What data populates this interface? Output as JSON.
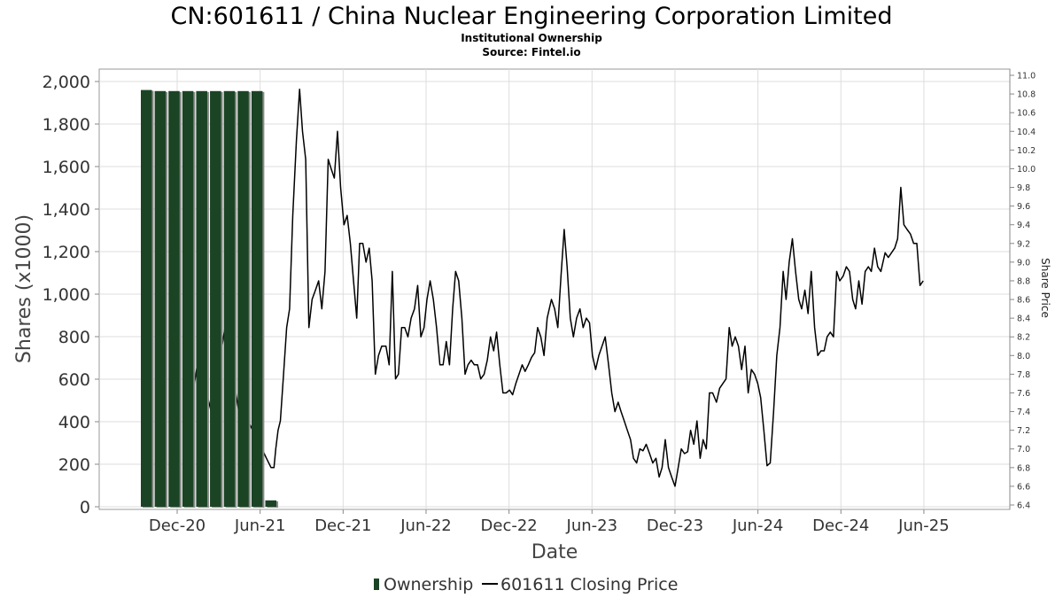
{
  "header": {
    "title": "CN:601611 / China Nuclear Engineering Corporation Limited",
    "subtitle": "Institutional Ownership",
    "source": "Source: Fintel.io"
  },
  "axes": {
    "xlabel": "Date",
    "ylabel_left": "Shares (x1000)",
    "ylabel_right": "Share Price"
  },
  "legend": {
    "ownership_label": "Ownership",
    "price_label": "601611 Closing Price"
  },
  "colors": {
    "bar_fill": "#1b4424",
    "bar_shadow": "#8a8a8a",
    "line": "#000000",
    "grid": "#dddddd"
  },
  "chart_data": {
    "type": "bar+line",
    "x_tick_labels": [
      "Dec-20",
      "Jun-21",
      "Dec-21",
      "Jun-22",
      "Dec-22",
      "Jun-23",
      "Dec-23",
      "Jun-24",
      "Dec-24",
      "Jun-25"
    ],
    "y_left": {
      "ticks": [
        0,
        200,
        400,
        600,
        800,
        1000,
        1200,
        1400,
        1600,
        1800,
        2000
      ],
      "tick_labels": [
        "0",
        "200",
        "400",
        "600",
        "800",
        "1,000",
        "1,200",
        "1,400",
        "1,600",
        "1,800",
        "2,000"
      ],
      "range": [
        0,
        2000
      ]
    },
    "y_right": {
      "ticks": [
        6.4,
        6.6,
        6.8,
        7.0,
        7.2,
        7.4,
        7.6,
        7.8,
        8.0,
        8.2,
        8.4,
        8.6,
        8.8,
        9.0,
        9.2,
        9.4,
        9.6,
        9.8,
        10.0,
        10.2,
        10.4,
        10.6,
        10.8,
        11.0
      ],
      "tick_labels": [
        "6.4",
        "6.6",
        "6.8",
        "7.0",
        "7.2",
        "7.4",
        "7.6",
        "7.8",
        "8.0",
        "8.2",
        "8.4",
        "8.6",
        "8.8",
        "9.0",
        "9.2",
        "9.4",
        "9.6",
        "9.8",
        "10.0",
        "10.2",
        "10.4",
        "10.6",
        "10.8",
        "11.0"
      ],
      "range": [
        6.4,
        11.0
      ]
    },
    "ownership_series": {
      "name": "Ownership",
      "dates": [
        "2020-10-01",
        "2020-11-01",
        "2020-12-01",
        "2021-01-01",
        "2021-02-01",
        "2021-03-01",
        "2021-04-01",
        "2021-05-01",
        "2021-06-01",
        "2021-07-01"
      ],
      "values": [
        1960,
        1955,
        1955,
        1955,
        1955,
        1955,
        1955,
        1955,
        1955,
        30
      ]
    },
    "price_series": {
      "name": "601611 Closing Price",
      "points": [
        [
          "2020-12-15",
          7.4
        ],
        [
          "2020-12-25",
          7.3
        ],
        [
          "2021-01-05",
          7.6
        ],
        [
          "2021-01-15",
          7.9
        ],
        [
          "2021-01-25",
          8.0
        ],
        [
          "2021-02-05",
          7.6
        ],
        [
          "2021-02-15",
          7.4
        ],
        [
          "2021-02-25",
          7.5
        ],
        [
          "2021-03-05",
          8.0
        ],
        [
          "2021-03-15",
          8.3
        ],
        [
          "2021-03-25",
          8.0
        ],
        [
          "2021-04-05",
          7.7
        ],
        [
          "2021-04-15",
          7.4
        ],
        [
          "2021-04-25",
          7.2
        ],
        [
          "2021-05-05",
          7.3
        ],
        [
          "2021-05-15",
          7.2
        ],
        [
          "2021-05-25",
          7.1
        ],
        [
          "2021-06-05",
          7.0
        ],
        [
          "2021-06-15",
          6.9
        ],
        [
          "2021-06-25",
          6.8
        ],
        [
          "2021-07-01",
          6.8
        ],
        [
          "2021-07-05",
          7.0
        ],
        [
          "2021-07-10",
          7.2
        ],
        [
          "2021-07-15",
          7.3
        ],
        [
          "2021-07-22",
          7.8
        ],
        [
          "2021-07-29",
          8.3
        ],
        [
          "2021-08-05",
          8.5
        ],
        [
          "2021-08-12",
          9.5
        ],
        [
          "2021-08-20",
          10.3
        ],
        [
          "2021-08-27",
          10.85
        ],
        [
          "2021-09-03",
          10.4
        ],
        [
          "2021-09-10",
          10.1
        ],
        [
          "2021-09-17",
          8.3
        ],
        [
          "2021-09-24",
          8.6
        ],
        [
          "2021-10-01",
          8.7
        ],
        [
          "2021-10-08",
          8.8
        ],
        [
          "2021-10-15",
          8.5
        ],
        [
          "2021-10-22",
          8.9
        ],
        [
          "2021-10-29",
          10.1
        ],
        [
          "2021-11-05",
          10.0
        ],
        [
          "2021-11-12",
          9.9
        ],
        [
          "2021-11-19",
          10.4
        ],
        [
          "2021-11-26",
          9.8
        ],
        [
          "2021-12-03",
          9.4
        ],
        [
          "2021-12-10",
          9.5
        ],
        [
          "2021-12-17",
          9.2
        ],
        [
          "2021-12-24",
          8.8
        ],
        [
          "2021-12-31",
          8.4
        ],
        [
          "2022-01-07",
          9.2
        ],
        [
          "2022-01-14",
          9.2
        ],
        [
          "2022-01-21",
          9.0
        ],
        [
          "2022-01-28",
          9.15
        ],
        [
          "2022-02-04",
          8.8
        ],
        [
          "2022-02-11",
          7.8
        ],
        [
          "2022-02-18",
          8.0
        ],
        [
          "2022-02-25",
          8.1
        ],
        [
          "2022-03-04",
          8.1
        ],
        [
          "2022-03-11",
          7.9
        ],
        [
          "2022-03-18",
          8.9
        ],
        [
          "2022-03-25",
          7.75
        ],
        [
          "2022-04-01",
          7.8
        ],
        [
          "2022-04-08",
          8.3
        ],
        [
          "2022-04-15",
          8.3
        ],
        [
          "2022-04-22",
          8.2
        ],
        [
          "2022-04-29",
          8.4
        ],
        [
          "2022-05-06",
          8.5
        ],
        [
          "2022-05-13",
          8.75
        ],
        [
          "2022-05-20",
          8.2
        ],
        [
          "2022-05-27",
          8.3
        ],
        [
          "2022-06-03",
          8.6
        ],
        [
          "2022-06-10",
          8.8
        ],
        [
          "2022-06-17",
          8.6
        ],
        [
          "2022-06-24",
          8.3
        ],
        [
          "2022-07-01",
          7.9
        ],
        [
          "2022-07-08",
          7.9
        ],
        [
          "2022-07-15",
          8.15
        ],
        [
          "2022-07-22",
          7.9
        ],
        [
          "2022-07-29",
          8.5
        ],
        [
          "2022-08-05",
          8.9
        ],
        [
          "2022-08-12",
          8.8
        ],
        [
          "2022-08-19",
          8.4
        ],
        [
          "2022-08-26",
          7.8
        ],
        [
          "2022-09-02",
          7.9
        ],
        [
          "2022-09-09",
          7.95
        ],
        [
          "2022-09-16",
          7.9
        ],
        [
          "2022-09-23",
          7.9
        ],
        [
          "2022-09-30",
          7.75
        ],
        [
          "2022-10-07",
          7.8
        ],
        [
          "2022-10-14",
          7.95
        ],
        [
          "2022-10-21",
          8.2
        ],
        [
          "2022-10-28",
          8.05
        ],
        [
          "2022-11-04",
          8.25
        ],
        [
          "2022-11-11",
          7.9
        ],
        [
          "2022-11-18",
          7.6
        ],
        [
          "2022-11-25",
          7.6
        ],
        [
          "2022-12-02",
          7.63
        ],
        [
          "2022-12-09",
          7.58
        ],
        [
          "2022-12-16",
          7.7
        ],
        [
          "2022-12-23",
          7.8
        ],
        [
          "2022-12-30",
          7.9
        ],
        [
          "2023-01-06",
          7.83
        ],
        [
          "2023-01-13",
          7.9
        ],
        [
          "2023-01-20",
          7.98
        ],
        [
          "2023-01-27",
          8.03
        ],
        [
          "2023-02-03",
          8.3
        ],
        [
          "2023-02-10",
          8.2
        ],
        [
          "2023-02-17",
          8.0
        ],
        [
          "2023-02-24",
          8.4
        ],
        [
          "2023-03-03",
          8.6
        ],
        [
          "2023-03-10",
          8.5
        ],
        [
          "2023-03-17",
          8.3
        ],
        [
          "2023-03-24",
          8.85
        ],
        [
          "2023-03-31",
          9.35
        ],
        [
          "2023-04-07",
          8.95
        ],
        [
          "2023-04-14",
          8.4
        ],
        [
          "2023-04-21",
          8.2
        ],
        [
          "2023-04-28",
          8.4
        ],
        [
          "2023-05-05",
          8.5
        ],
        [
          "2023-05-12",
          8.3
        ],
        [
          "2023-05-19",
          8.4
        ],
        [
          "2023-05-26",
          8.35
        ],
        [
          "2023-06-02",
          8.0
        ],
        [
          "2023-06-09",
          7.85
        ],
        [
          "2023-06-16",
          8.0
        ],
        [
          "2023-06-23",
          8.1
        ],
        [
          "2023-06-30",
          8.2
        ],
        [
          "2023-07-07",
          7.9
        ],
        [
          "2023-07-14",
          7.6
        ],
        [
          "2023-07-21",
          7.4
        ],
        [
          "2023-07-28",
          7.5
        ],
        [
          "2023-08-04",
          7.4
        ],
        [
          "2023-08-11",
          7.3
        ],
        [
          "2023-08-18",
          7.2
        ],
        [
          "2023-08-25",
          7.1
        ],
        [
          "2023-09-01",
          6.9
        ],
        [
          "2023-09-08",
          6.85
        ],
        [
          "2023-09-15",
          7.0
        ],
        [
          "2023-09-22",
          6.98
        ],
        [
          "2023-09-29",
          7.05
        ],
        [
          "2023-10-06",
          6.95
        ],
        [
          "2023-10-13",
          6.85
        ],
        [
          "2023-10-20",
          6.9
        ],
        [
          "2023-10-27",
          6.7
        ],
        [
          "2023-11-03",
          6.8
        ],
        [
          "2023-11-10",
          7.1
        ],
        [
          "2023-11-17",
          6.8
        ],
        [
          "2023-11-24",
          6.7
        ],
        [
          "2023-12-01",
          6.6
        ],
        [
          "2023-12-08",
          6.8
        ],
        [
          "2023-12-15",
          7.0
        ],
        [
          "2023-12-22",
          6.95
        ],
        [
          "2023-12-29",
          6.97
        ],
        [
          "2024-01-05",
          7.2
        ],
        [
          "2024-01-12",
          7.05
        ],
        [
          "2024-01-19",
          7.3
        ],
        [
          "2024-01-26",
          6.9
        ],
        [
          "2024-02-02",
          7.1
        ],
        [
          "2024-02-09",
          7.0
        ],
        [
          "2024-02-16",
          7.6
        ],
        [
          "2024-02-23",
          7.6
        ],
        [
          "2024-03-01",
          7.5
        ],
        [
          "2024-03-08",
          7.65
        ],
        [
          "2024-03-15",
          7.7
        ],
        [
          "2024-03-22",
          7.75
        ],
        [
          "2024-03-29",
          8.3
        ],
        [
          "2024-04-05",
          8.1
        ],
        [
          "2024-04-12",
          8.2
        ],
        [
          "2024-04-19",
          8.1
        ],
        [
          "2024-04-26",
          7.85
        ],
        [
          "2024-05-03",
          8.1
        ],
        [
          "2024-05-10",
          7.6
        ],
        [
          "2024-05-17",
          7.85
        ],
        [
          "2024-05-24",
          7.8
        ],
        [
          "2024-05-31",
          7.7
        ],
        [
          "2024-06-07",
          7.55
        ],
        [
          "2024-06-14",
          7.2
        ],
        [
          "2024-06-21",
          6.82
        ],
        [
          "2024-06-28",
          6.85
        ],
        [
          "2024-07-05",
          7.4
        ],
        [
          "2024-07-12",
          8.0
        ],
        [
          "2024-07-19",
          8.3
        ],
        [
          "2024-07-26",
          8.9
        ],
        [
          "2024-08-02",
          8.6
        ],
        [
          "2024-08-09",
          9.0
        ],
        [
          "2024-08-16",
          9.25
        ],
        [
          "2024-08-23",
          8.9
        ],
        [
          "2024-08-30",
          8.6
        ],
        [
          "2024-09-06",
          8.5
        ],
        [
          "2024-09-13",
          8.7
        ],
        [
          "2024-09-20",
          8.45
        ],
        [
          "2024-09-27",
          8.9
        ],
        [
          "2024-10-04",
          8.3
        ],
        [
          "2024-10-11",
          8.0
        ],
        [
          "2024-10-18",
          8.05
        ],
        [
          "2024-10-25",
          8.05
        ],
        [
          "2024-11-01",
          8.2
        ],
        [
          "2024-11-08",
          8.25
        ],
        [
          "2024-11-15",
          8.2
        ],
        [
          "2024-11-22",
          8.9
        ],
        [
          "2024-11-29",
          8.8
        ],
        [
          "2024-12-06",
          8.85
        ],
        [
          "2024-12-13",
          8.95
        ],
        [
          "2024-12-20",
          8.9
        ],
        [
          "2024-12-27",
          8.6
        ],
        [
          "2025-01-03",
          8.5
        ],
        [
          "2025-01-10",
          8.8
        ],
        [
          "2025-01-17",
          8.55
        ],
        [
          "2025-01-24",
          8.9
        ],
        [
          "2025-01-31",
          8.95
        ],
        [
          "2025-02-07",
          8.9
        ],
        [
          "2025-02-14",
          9.15
        ],
        [
          "2025-02-21",
          8.95
        ],
        [
          "2025-02-28",
          8.9
        ],
        [
          "2025-03-07",
          9.1
        ],
        [
          "2025-03-14",
          9.05
        ],
        [
          "2025-03-21",
          9.1
        ],
        [
          "2025-03-28",
          9.15
        ],
        [
          "2025-04-04",
          9.25
        ],
        [
          "2025-04-11",
          9.8
        ],
        [
          "2025-04-18",
          9.4
        ],
        [
          "2025-04-25",
          9.35
        ],
        [
          "2025-05-02",
          9.3
        ],
        [
          "2025-05-09",
          9.2
        ],
        [
          "2025-05-16",
          9.2
        ],
        [
          "2025-05-23",
          8.75
        ],
        [
          "2025-05-30",
          8.8
        ]
      ]
    },
    "xlabel": "Date",
    "ylabel": "Shares (x1000)",
    "y2label": "Share Price",
    "grid": true,
    "legend_position": "bottom-center"
  }
}
